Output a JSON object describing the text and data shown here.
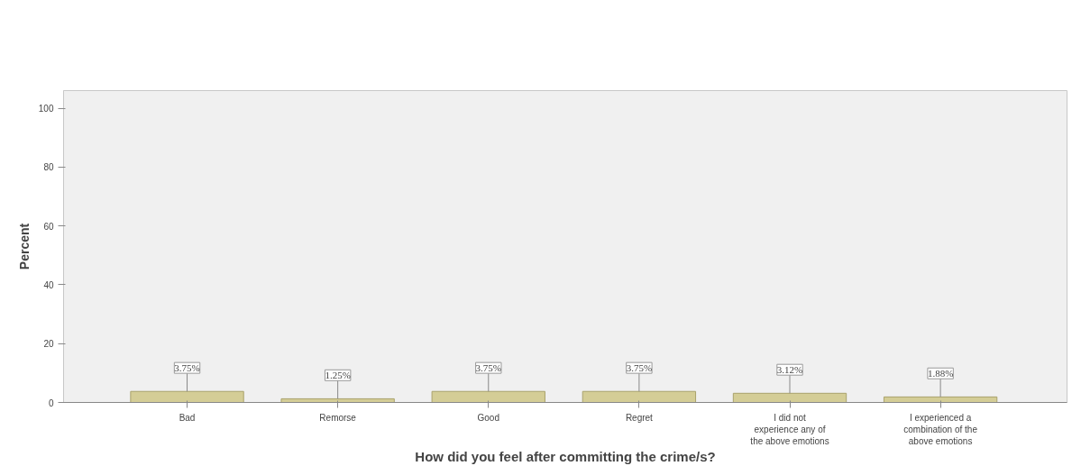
{
  "chart_data": {
    "type": "bar",
    "categories": [
      "Bad",
      "Remorse",
      "Good",
      "Regret",
      "I did not experience any of the above emotions",
      "I experienced a combination of the above emotions"
    ],
    "values": [
      3.75,
      1.25,
      3.75,
      3.75,
      3.12,
      1.88
    ],
    "value_labels": [
      "3.75%",
      "1.25%",
      "3.75%",
      "3.75%",
      "3.12%",
      "1.88%"
    ],
    "color": "#d4cd96",
    "xlabel": "How did you feel after committing the crime/s?",
    "ylabel": "Percent",
    "ylim": [
      0,
      106
    ],
    "yticks": [
      0,
      20,
      40,
      60,
      80,
      100
    ],
    "grid": false
  }
}
